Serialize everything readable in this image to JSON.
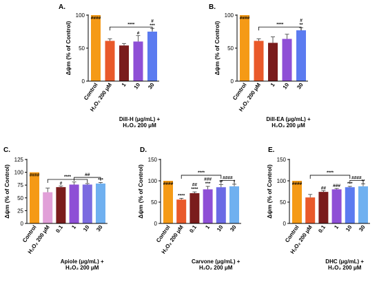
{
  "chart_data": [
    {
      "type": "bar",
      "panel": "A.",
      "ylabel": "Δψm (% of Control)",
      "ylim": [
        0,
        100
      ],
      "yticks": [
        0,
        50,
        100
      ],
      "categories": [
        "Control",
        "H₂O₂ 200 μM",
        "1",
        "10",
        "30"
      ],
      "values": [
        100,
        61,
        54,
        60,
        75
      ],
      "errors": [
        0,
        3,
        3,
        9,
        5
      ],
      "colors": [
        "#F59A16",
        "#E9592A",
        "#7A1C1C",
        "#8E4FD6",
        "#5B7BF0"
      ],
      "above": [
        "####",
        "",
        "",
        "#",
        "#\n***"
      ],
      "xlabel": [
        "Dill-H (μg/mL) +",
        "H₂O₂ 200 μM"
      ],
      "bracket": {
        "from": 1,
        "to": 4,
        "y": 82,
        "label": "****"
      }
    },
    {
      "type": "bar",
      "panel": "B.",
      "ylabel": "Δψm (% of Control)",
      "ylim": [
        0,
        100
      ],
      "yticks": [
        0,
        50,
        100
      ],
      "categories": [
        "Control",
        "H₂O₂ 200 μM",
        "1",
        "10",
        "30"
      ],
      "values": [
        100,
        61,
        58,
        64,
        77
      ],
      "errors": [
        0,
        3,
        9,
        7,
        4
      ],
      "colors": [
        "#F59A16",
        "#E9592A",
        "#7A1C1C",
        "#8E4FD6",
        "#5B7BF0"
      ],
      "above": [
        "####",
        "",
        "",
        "",
        "#\n**"
      ],
      "xlabel": [
        "Dill-EA (μg/mL) +",
        "H₂O₂ 200 μM"
      ],
      "bracket": {
        "from": 1,
        "to": 4,
        "y": 82,
        "label": "****"
      }
    },
    {
      "type": "bar",
      "panel": "C.",
      "ylabel": "Δψm (% of Control)",
      "ylim": [
        0,
        125
      ],
      "yticks": [
        0,
        25,
        50,
        75,
        100,
        125
      ],
      "categories": [
        "Control",
        "H₂O₂ 200 μM",
        "0.1",
        "1",
        "10",
        "30"
      ],
      "values": [
        100,
        61,
        71,
        76,
        76,
        78
      ],
      "errors": [
        0,
        8,
        2,
        5,
        2,
        2
      ],
      "colors": [
        "#F59A16",
        "#E1A0D8",
        "#7A1C1C",
        "#8E4FD6",
        "#7B6BE0",
        "#6FB0F0"
      ],
      "above": [
        "####",
        "",
        "#",
        "",
        "",
        "***"
      ],
      "xlabel": [
        "Apiole (μg/mL) +",
        "H₂O₂ 200 μM"
      ],
      "bracket": {
        "from": 1,
        "to": 4,
        "y": 86,
        "label": "****"
      },
      "bracket2": {
        "from": 3,
        "to": 5,
        "y": 90,
        "label": "##"
      }
    },
    {
      "type": "bar",
      "panel": "D.",
      "ylabel": "Δψm (% of Control)",
      "ylim": [
        0,
        150
      ],
      "yticks": [
        0,
        50,
        100,
        150
      ],
      "categories": [
        "Control",
        "H₂O₂ 200 μM",
        "0.1",
        "1",
        "10",
        "30"
      ],
      "values": [
        100,
        56,
        71,
        80,
        85,
        87
      ],
      "errors": [
        0,
        3,
        3,
        7,
        6,
        5
      ],
      "colors": [
        "#F59A16",
        "#E9592A",
        "#7A1C1C",
        "#8E4FD6",
        "#6B6BE5",
        "#6FB0F0"
      ],
      "above": [
        "####",
        "****",
        "##\n****",
        "###\n***",
        "**",
        "*"
      ],
      "xlabel": [
        "Carvone (μg/mL) +",
        "H₂O₂ 200 μM"
      ],
      "bracket": {
        "from": 1,
        "to": 4,
        "y": 113,
        "label": "****"
      },
      "bracket2": {
        "from": 4,
        "to": 5,
        "y": 101,
        "label": "####"
      }
    },
    {
      "type": "bar",
      "panel": "E.",
      "ylabel": "Δψm (% of Control)",
      "ylim": [
        0,
        150
      ],
      "yticks": [
        0,
        50,
        100,
        150
      ],
      "categories": [
        "Control",
        "H₂O₂ 200 μM",
        "0.1",
        "1",
        "10",
        "30"
      ],
      "values": [
        100,
        61,
        74,
        80,
        85,
        87
      ],
      "errors": [
        0,
        7,
        3,
        2,
        2,
        6
      ],
      "colors": [
        "#F59A16",
        "#E9592A",
        "#7A1C1C",
        "#8E4FD6",
        "#5B7BF0",
        "#6FB0F0"
      ],
      "above": [
        "####",
        "",
        "##",
        "###",
        "***",
        "**"
      ],
      "xlabel": [
        "DHC (μg/mL) +",
        "H₂O₂ 200 μM"
      ],
      "bracket": {
        "from": 1,
        "to": 4,
        "y": 113,
        "label": "****"
      },
      "bracket2": {
        "from": 4,
        "to": 5,
        "y": 101,
        "label": "####"
      }
    }
  ]
}
